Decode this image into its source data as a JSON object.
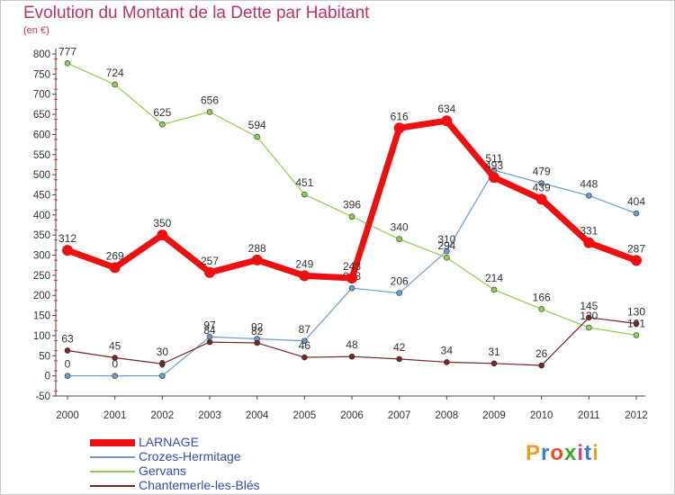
{
  "title": "Evolution du Montant de la Dette par Habitant",
  "subtitle": "(en €)",
  "logo": {
    "text": "Proxiti",
    "colors": [
      "#e8a020",
      "#3a7bd5",
      "#e85020",
      "#3aa830",
      "#d04080",
      "#3a7bd5",
      "#e8a020"
    ]
  },
  "chart_data": {
    "type": "line",
    "title": "Evolution du Montant de la Dette par Habitant",
    "ylabel": "(en €)",
    "x": [
      2000,
      2001,
      2002,
      2003,
      2004,
      2005,
      2006,
      2007,
      2008,
      2009,
      2010,
      2011,
      2012
    ],
    "ylim": [
      -50,
      800
    ],
    "yticks": [
      -50,
      0,
      50,
      100,
      150,
      200,
      250,
      300,
      350,
      400,
      450,
      500,
      550,
      600,
      650,
      700,
      750,
      800
    ],
    "grid": false,
    "legend_position": "bottom",
    "series": [
      {
        "name": "LARNAGE",
        "color": "#ee1010",
        "width": 7,
        "values": [
          312,
          269,
          350,
          257,
          288,
          249,
          243,
          616,
          634,
          493,
          439,
          331,
          287
        ]
      },
      {
        "name": "Crozes-Hermitage",
        "color": "#6a9ccf",
        "width": 1.2,
        "values": [
          0,
          0,
          0,
          97,
          92,
          87,
          218,
          206,
          310,
          511,
          479,
          448,
          404
        ]
      },
      {
        "name": "Gervans",
        "color": "#8ecf50",
        "width": 1.2,
        "values": [
          777,
          724,
          625,
          656,
          594,
          451,
          396,
          340,
          294,
          214,
          166,
          120,
          101
        ]
      },
      {
        "name": "Chantemerle-les-Blés",
        "color": "#7a2424",
        "width": 1.2,
        "values": [
          63,
          45,
          30,
          84,
          82,
          46,
          48,
          42,
          34,
          31,
          26,
          145,
          130
        ]
      }
    ]
  }
}
